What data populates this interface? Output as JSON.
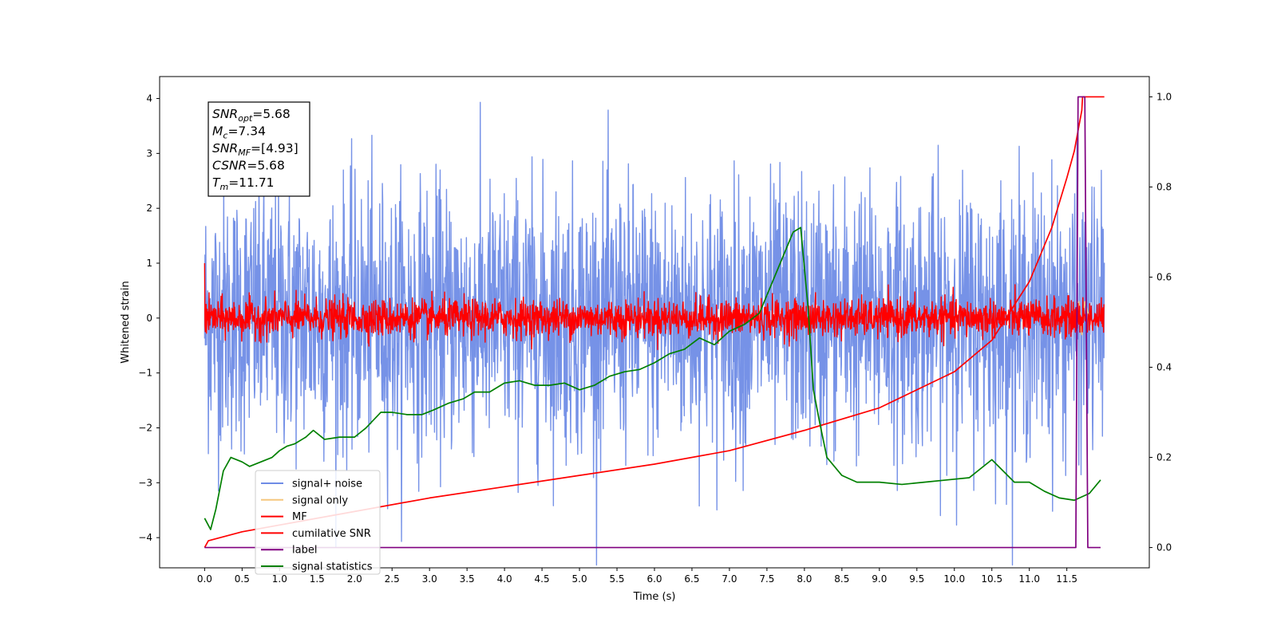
{
  "chart_data": {
    "type": "line",
    "xlabel": "Time (s)",
    "ylabel": "Whitened strain",
    "xlim": [
      -0.6,
      12.6
    ],
    "ylim": [
      -4.55,
      4.4
    ],
    "y2lim": [
      -0.045,
      1.045
    ],
    "x_ticks": [
      "0.0",
      "0.5",
      "1.0",
      "1.5",
      "2.0",
      "2.5",
      "3.0",
      "3.5",
      "4.0",
      "4.5",
      "5.0",
      "5.5",
      "6.0",
      "6.5",
      "7.0",
      "7.5",
      "8.0",
      "8.5",
      "9.0",
      "9.5",
      "10.0",
      "10.5",
      "11.0",
      "11.5"
    ],
    "y_ticks": [
      "4",
      "3",
      "2",
      "1",
      "0",
      "−1",
      "−2",
      "−3",
      "−4"
    ],
    "y2_ticks": [
      "1.0",
      "0.8",
      "0.6",
      "0.4",
      "0.2",
      "0.0"
    ],
    "annotation": {
      "lines": [
        {
          "base": "SNR",
          "sub": "opt",
          "rest": "=5.68"
        },
        {
          "base": "M",
          "sub": "c",
          "rest": "=7.34"
        },
        {
          "base": "SNR",
          "sub": "MF",
          "rest": "=[4.93]"
        },
        {
          "base": "CSNR",
          "sub": "",
          "rest": "=5.68"
        },
        {
          "base": "T",
          "sub": "m",
          "rest": "=11.71"
        }
      ]
    },
    "legend_position": "lower-left",
    "series": [
      {
        "name": "signal+ noise",
        "axis": "left",
        "color": "#6f8ce6",
        "style": "noise",
        "duration": 12.0,
        "std": 1.2,
        "sample_count": 2400
      },
      {
        "name": "signal only",
        "axis": "left",
        "color": "#f5c77e",
        "x": [
          11.6,
          11.66,
          11.7,
          11.74,
          11.8
        ],
        "y": [
          0.0,
          0.3,
          -0.3,
          0.3,
          0.0
        ]
      },
      {
        "name": "MF",
        "axis": "left",
        "color": "#ff0000",
        "style": "noise",
        "duration": 12.0,
        "std": 0.17,
        "sample_count": 2400,
        "start_value": 1.0
      },
      {
        "name": "cumilative SNR",
        "axis": "right",
        "color": "#ff0000",
        "x": [
          0.0,
          0.05,
          0.5,
          1.0,
          2.0,
          3.0,
          4.0,
          5.0,
          6.0,
          7.0,
          8.0,
          9.0,
          10.0,
          10.5,
          11.0,
          11.3,
          11.5,
          11.6,
          11.7,
          11.71,
          12.0
        ],
        "y": [
          0.0,
          0.015,
          0.035,
          0.05,
          0.08,
          0.11,
          0.135,
          0.16,
          0.185,
          0.215,
          0.26,
          0.31,
          0.39,
          0.46,
          0.59,
          0.71,
          0.82,
          0.88,
          0.97,
          1.0,
          1.0
        ]
      },
      {
        "name": "label",
        "axis": "right",
        "color": "#800080",
        "x": [
          0.0,
          11.62,
          11.65,
          11.74,
          11.78,
          11.95
        ],
        "y": [
          0.0,
          0.0,
          1.0,
          1.0,
          0.0,
          0.0
        ]
      },
      {
        "name": "signal statistics",
        "axis": "right",
        "color": "#008000",
        "x": [
          0.0,
          0.08,
          0.15,
          0.25,
          0.35,
          0.5,
          0.6,
          0.75,
          0.9,
          1.0,
          1.1,
          1.2,
          1.35,
          1.45,
          1.6,
          1.8,
          2.0,
          2.15,
          2.35,
          2.5,
          2.7,
          2.9,
          3.05,
          3.25,
          3.45,
          3.6,
          3.8,
          4.0,
          4.2,
          4.4,
          4.6,
          4.8,
          5.0,
          5.2,
          5.4,
          5.6,
          5.8,
          6.0,
          6.2,
          6.4,
          6.6,
          6.8,
          7.0,
          7.2,
          7.4,
          7.55,
          7.7,
          7.85,
          7.95,
          8.05,
          8.12,
          8.2,
          8.3,
          8.5,
          8.7,
          9.0,
          9.3,
          9.6,
          9.9,
          10.2,
          10.5,
          10.8,
          11.0,
          11.2,
          11.4,
          11.6,
          11.8,
          11.95
        ],
        "y": [
          0.065,
          0.04,
          0.085,
          0.17,
          0.2,
          0.19,
          0.18,
          0.19,
          0.2,
          0.215,
          0.225,
          0.23,
          0.245,
          0.26,
          0.24,
          0.245,
          0.245,
          0.265,
          0.3,
          0.3,
          0.295,
          0.295,
          0.305,
          0.32,
          0.33,
          0.345,
          0.345,
          0.365,
          0.37,
          0.36,
          0.36,
          0.365,
          0.35,
          0.36,
          0.38,
          0.39,
          0.395,
          0.41,
          0.43,
          0.44,
          0.465,
          0.45,
          0.48,
          0.495,
          0.52,
          0.58,
          0.64,
          0.7,
          0.71,
          0.53,
          0.35,
          0.28,
          0.2,
          0.16,
          0.145,
          0.145,
          0.14,
          0.145,
          0.15,
          0.155,
          0.195,
          0.145,
          0.145,
          0.125,
          0.11,
          0.105,
          0.12,
          0.15
        ]
      }
    ]
  }
}
